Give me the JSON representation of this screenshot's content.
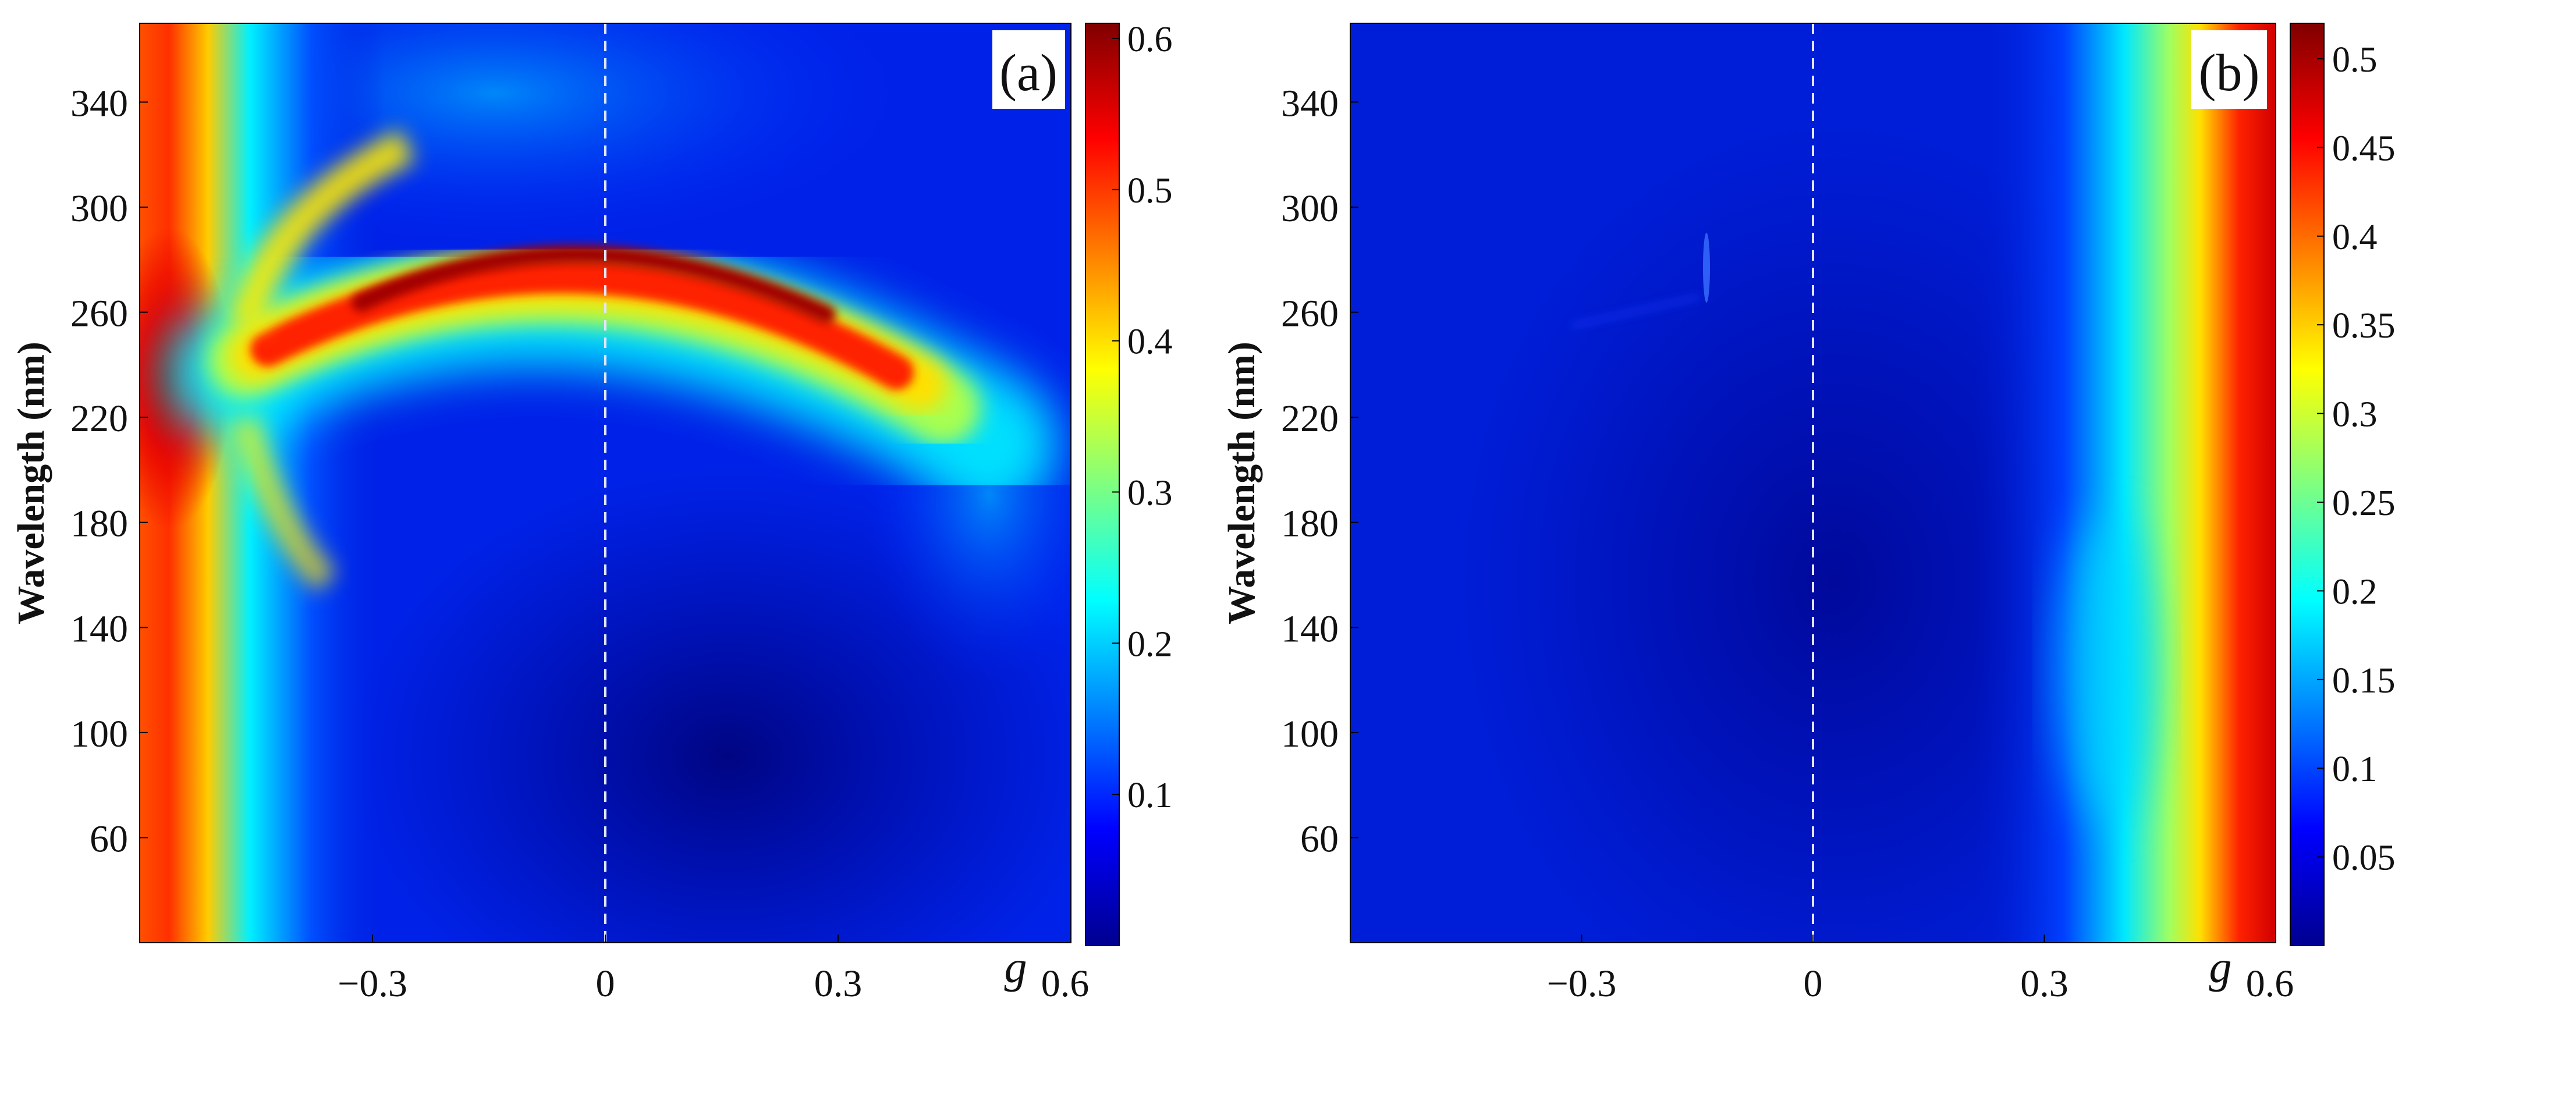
{
  "chart_data": [
    {
      "panel_label": "(a)",
      "type": "heatmap",
      "xlabel": "g",
      "ylabel": "Wavelength (nm)",
      "xlim": [
        -0.6,
        0.6
      ],
      "ylim": [
        20,
        370
      ],
      "xticks": [
        {
          "value": -0.3,
          "label": "−0.3"
        },
        {
          "value": 0,
          "label": "0"
        },
        {
          "value": 0.3,
          "label": "0.3"
        },
        {
          "value": 0.6,
          "label": "0.6"
        }
      ],
      "yticks": [
        60,
        100,
        140,
        180,
        220,
        260,
        300,
        340
      ],
      "reference_line": {
        "x": 0,
        "style": "dashed"
      },
      "colorbar": {
        "range": [
          0.0,
          0.61
        ],
        "ticks": [
          {
            "value": 0.1,
            "label": "0.1"
          },
          {
            "value": 0.2,
            "label": "0.2"
          },
          {
            "value": 0.3,
            "label": "0.3"
          },
          {
            "value": 0.4,
            "label": "0.4"
          },
          {
            "value": 0.5,
            "label": "0.5"
          },
          {
            "value": 0.6,
            "label": "0.6"
          }
        ]
      },
      "features": {
        "left_edge_band": {
          "x": -0.58,
          "peak_value": 0.58
        },
        "arc_ridge": [
          {
            "g": -0.45,
            "wavelength": 258
          },
          {
            "g": -0.3,
            "wavelength": 270
          },
          {
            "g": -0.15,
            "wavelength": 279
          },
          {
            "g": 0.0,
            "wavelength": 282
          },
          {
            "g": 0.15,
            "wavelength": 279
          },
          {
            "g": 0.3,
            "wavelength": 268
          },
          {
            "g": 0.38,
            "wavelength": 258
          },
          {
            "g": 0.45,
            "wavelength": 238
          },
          {
            "g": 0.5,
            "wavelength": 212
          }
        ],
        "arc_peak_value": 0.6
      }
    },
    {
      "panel_label": "(b)",
      "type": "heatmap",
      "xlabel": "g",
      "ylabel": "Wavelength (nm)",
      "xlim": [
        -0.6,
        0.6
      ],
      "ylim": [
        20,
        370
      ],
      "xticks": [
        {
          "value": -0.3,
          "label": "−0.3"
        },
        {
          "value": 0,
          "label": "0"
        },
        {
          "value": 0.3,
          "label": "0.3"
        },
        {
          "value": 0.6,
          "label": "0.6"
        }
      ],
      "yticks": [
        60,
        100,
        140,
        180,
        220,
        260,
        300,
        340
      ],
      "reference_line": {
        "x": 0,
        "style": "dashed"
      },
      "colorbar": {
        "range": [
          0.0,
          0.52
        ],
        "ticks": [
          {
            "value": 0.05,
            "label": "0.05"
          },
          {
            "value": 0.1,
            "label": "0.1"
          },
          {
            "value": 0.15,
            "label": "0.15"
          },
          {
            "value": 0.2,
            "label": "0.2"
          },
          {
            "value": 0.25,
            "label": "0.25"
          },
          {
            "value": 0.3,
            "label": "0.3"
          },
          {
            "value": 0.35,
            "label": "0.35"
          },
          {
            "value": 0.4,
            "label": "0.4"
          },
          {
            "value": 0.45,
            "label": "0.45"
          },
          {
            "value": 0.5,
            "label": "0.5"
          }
        ]
      },
      "features": {
        "right_edge_band": {
          "x": 0.6,
          "peak_value": 0.52
        },
        "background_value": 0.02
      }
    }
  ]
}
